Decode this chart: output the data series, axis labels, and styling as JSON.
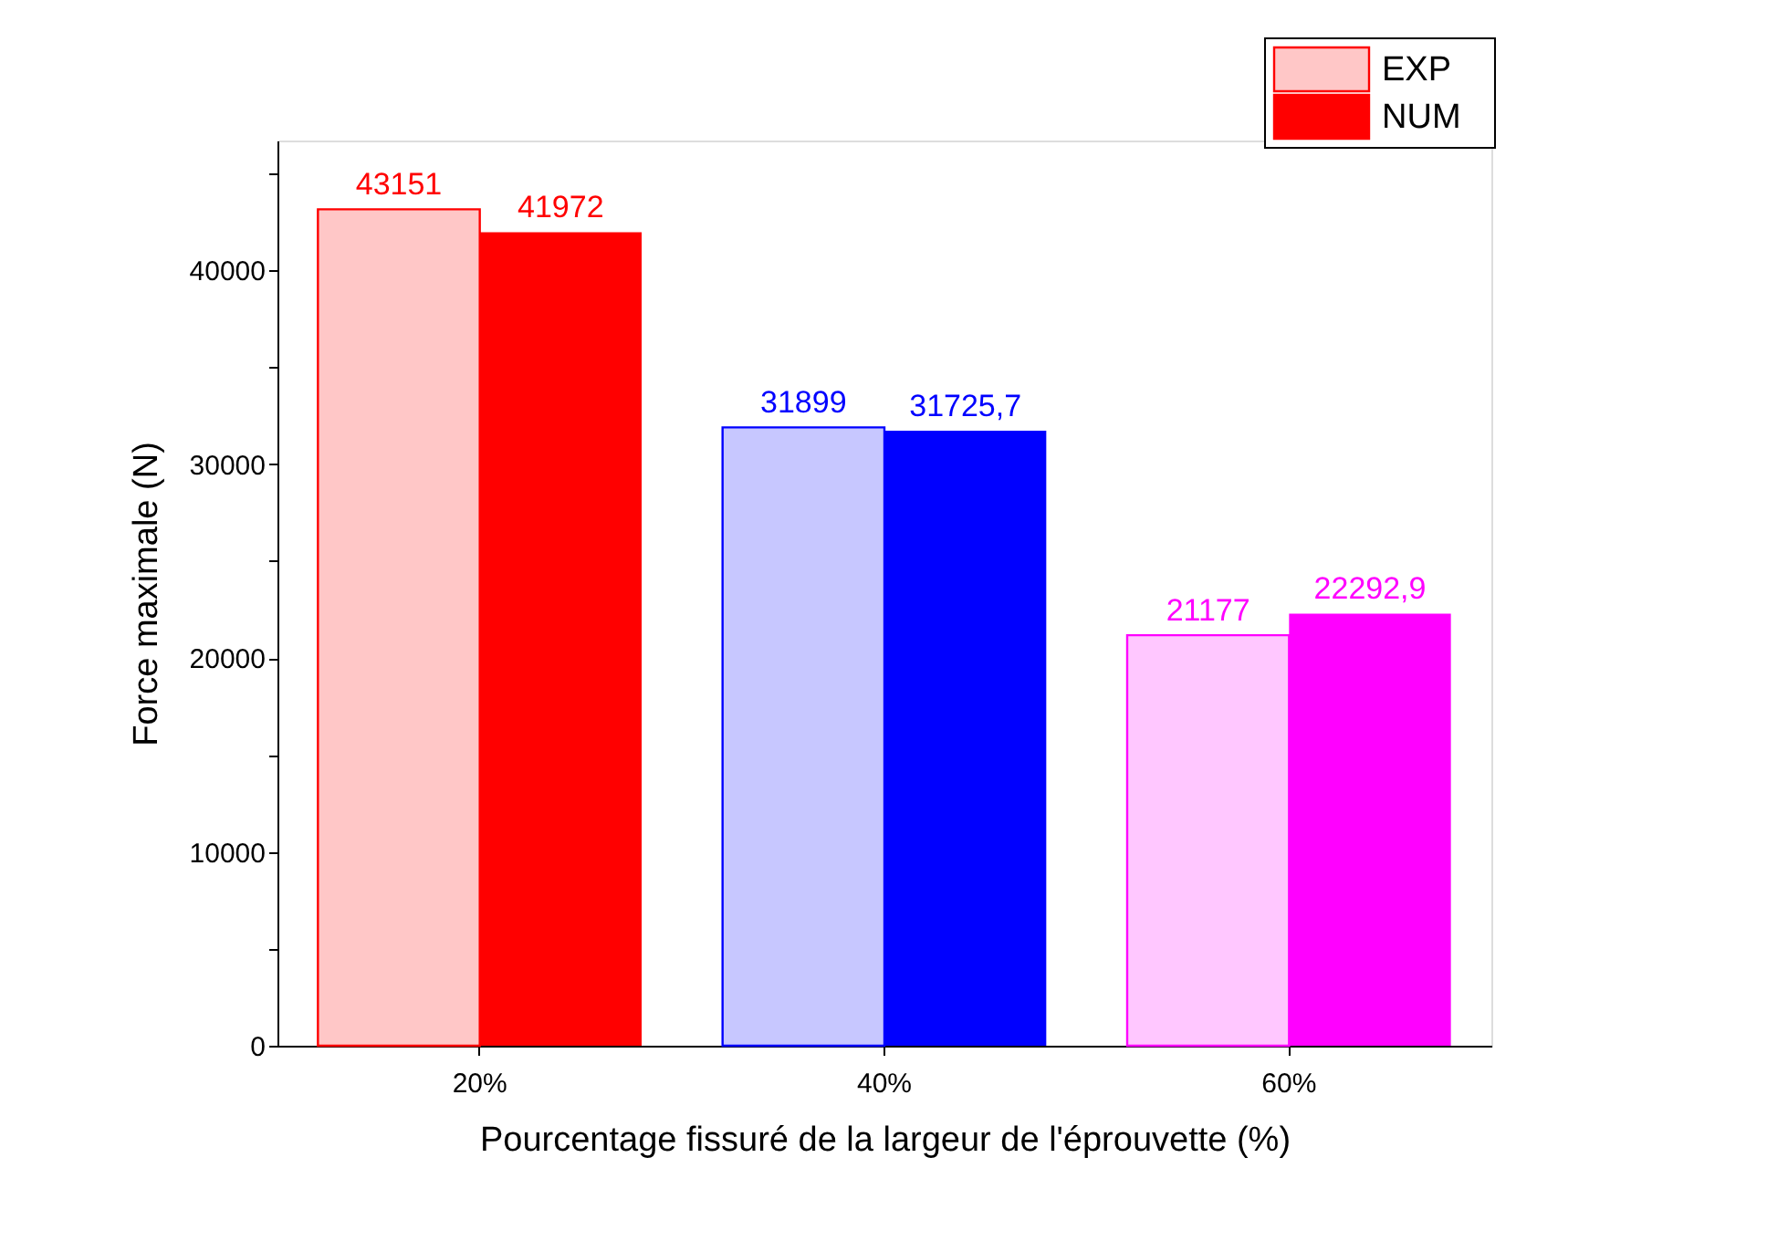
{
  "chart_data": {
    "type": "bar",
    "xlabel": "Pourcentage fissuré de la largeur de l'éprouvette (%)",
    "ylabel": "Force maximale (N)",
    "categories": [
      "20%",
      "40%",
      "60%"
    ],
    "series": [
      {
        "name": "EXP",
        "color": "#ff0000",
        "colors": [
          "#ff0000",
          "#0000ff",
          "#ff00ff"
        ],
        "values": [
          43151,
          31899,
          21177
        ],
        "value_labels": [
          "43151",
          "31899",
          "21177"
        ]
      },
      {
        "name": "NUM",
        "color": "#ff0000",
        "colors": [
          "#ff0000",
          "#0000ff",
          "#ff00ff"
        ],
        "values": [
          41972,
          31725.7,
          22292.9
        ],
        "value_labels": [
          "41972",
          "31725,7",
          "22292,9"
        ]
      }
    ],
    "ylim": [
      0,
      46700
    ],
    "yticks": [
      0,
      {
        "value": 5000,
        "label": null
      },
      10000,
      {
        "value": 15000,
        "label": null
      },
      20000,
      {
        "value": 25000,
        "label": null
      },
      30000,
      {
        "value": 35000,
        "label": null
      },
      40000,
      {
        "value": 45000,
        "label": null
      }
    ],
    "grid": false,
    "legend": "top right"
  }
}
